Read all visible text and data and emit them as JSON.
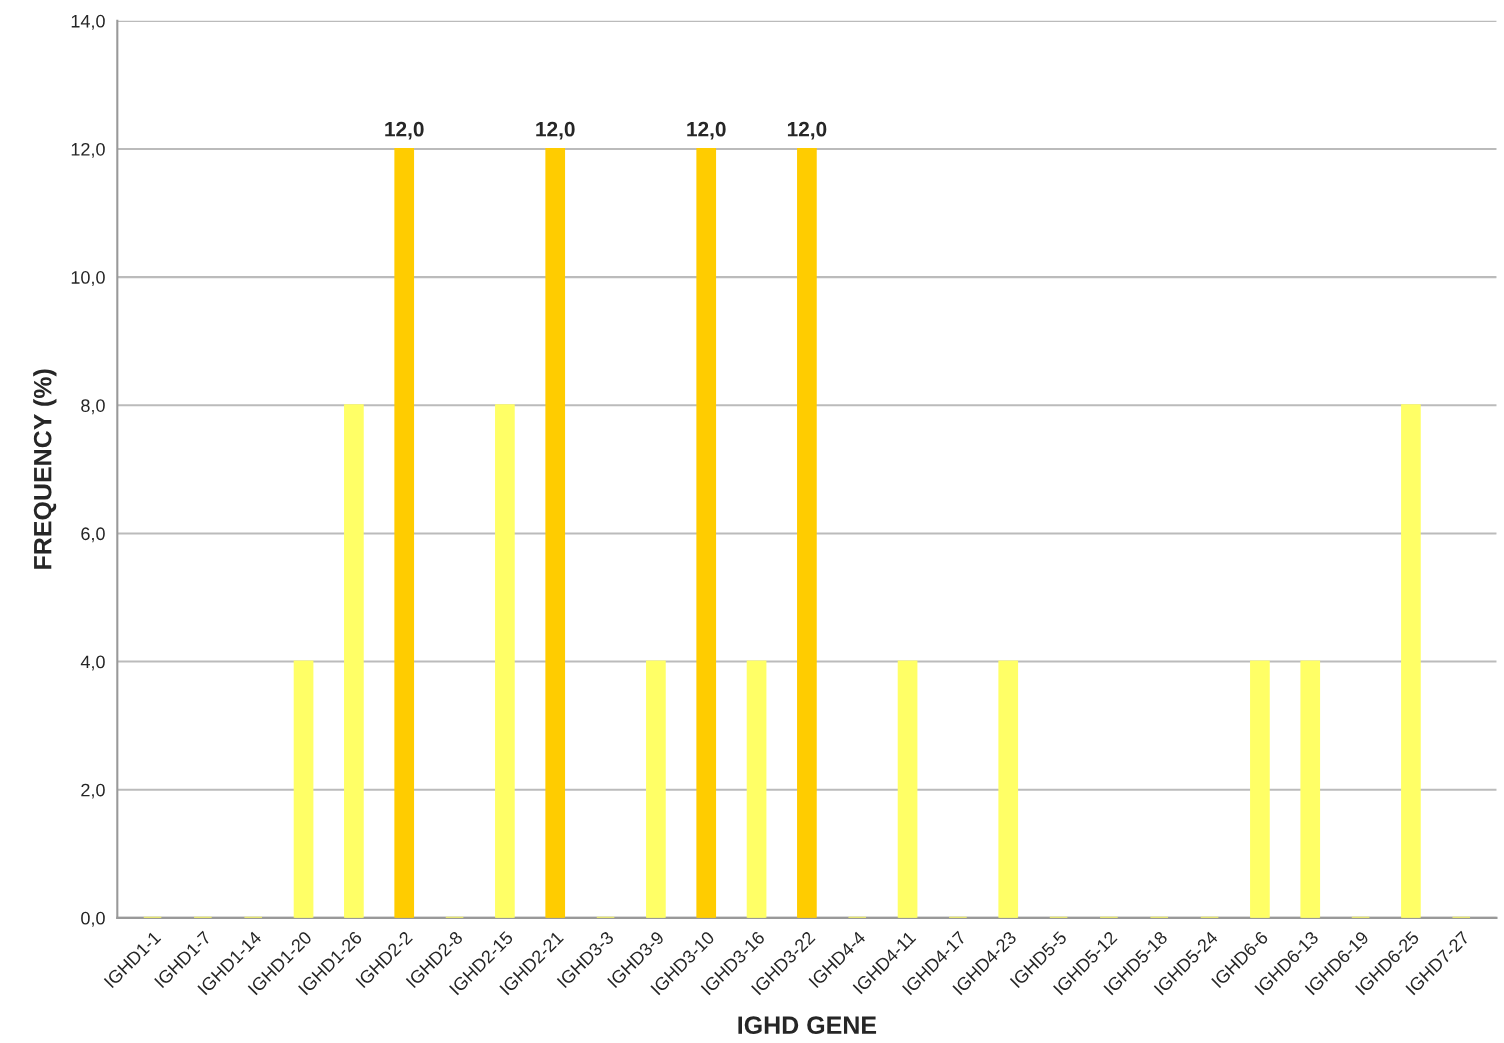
{
  "chart_data": {
    "type": "bar",
    "xlabel": "IGHD GENE",
    "ylabel": "FREQUENCY (%)",
    "categories": [
      "IGHD1-1",
      "IGHD1-7",
      "IGHD1-14",
      "IGHD1-20",
      "IGHD1-26",
      "IGHD2-2",
      "IGHD2-8",
      "IGHD2-15",
      "IGHD2-21",
      "IGHD3-3",
      "IGHD3-9",
      "IGHD3-10",
      "IGHD3-16",
      "IGHD3-22",
      "IGHD4-4",
      "IGHD4-11",
      "IGHD4-17",
      "IGHD4-23",
      "IGHD5-5",
      "IGHD5-12",
      "IGHD5-18",
      "IGHD5-24",
      "IGHD6-6",
      "IGHD6-13",
      "IGHD6-19",
      "IGHD6-25",
      "IGHD7-27"
    ],
    "values": [
      0,
      0,
      0,
      4,
      8,
      12,
      0,
      8,
      12,
      0,
      4,
      12,
      4,
      12,
      0,
      4,
      0,
      4,
      0,
      0,
      0,
      0,
      4,
      4,
      0,
      8,
      0
    ],
    "colors": [
      "#ffff66",
      "#ffff66",
      "#ffff66",
      "#ffff66",
      "#ffff66",
      "#ffcc00",
      "#ffff66",
      "#ffff66",
      "#ffcc00",
      "#ffff66",
      "#ffff66",
      "#ffcc00",
      "#ffff66",
      "#ffcc00",
      "#ffff66",
      "#ffff66",
      "#ffff66",
      "#ffff66",
      "#ffff66",
      "#ffff66",
      "#ffff66",
      "#ffff66",
      "#ffff66",
      "#ffff66",
      "#ffff66",
      "#ffff66",
      "#ffff66"
    ],
    "value_labels": [
      null,
      null,
      null,
      null,
      null,
      "12,0",
      null,
      null,
      "12,0",
      null,
      null,
      "12,0",
      null,
      "12,0",
      null,
      null,
      null,
      null,
      null,
      null,
      null,
      null,
      null,
      null,
      null,
      null,
      null
    ],
    "ylim": [
      0,
      14
    ],
    "yticks": [
      {
        "value": 0,
        "label": "0,0"
      },
      {
        "value": 2,
        "label": "2,0"
      },
      {
        "value": 4,
        "label": "4,0"
      },
      {
        "value": 6,
        "label": "6,0"
      },
      {
        "value": 8,
        "label": "8,0"
      },
      {
        "value": 10,
        "label": "10,0"
      },
      {
        "value": 12,
        "label": "12,0"
      },
      {
        "value": 14,
        "label": "14,0"
      }
    ],
    "grid": "y"
  }
}
